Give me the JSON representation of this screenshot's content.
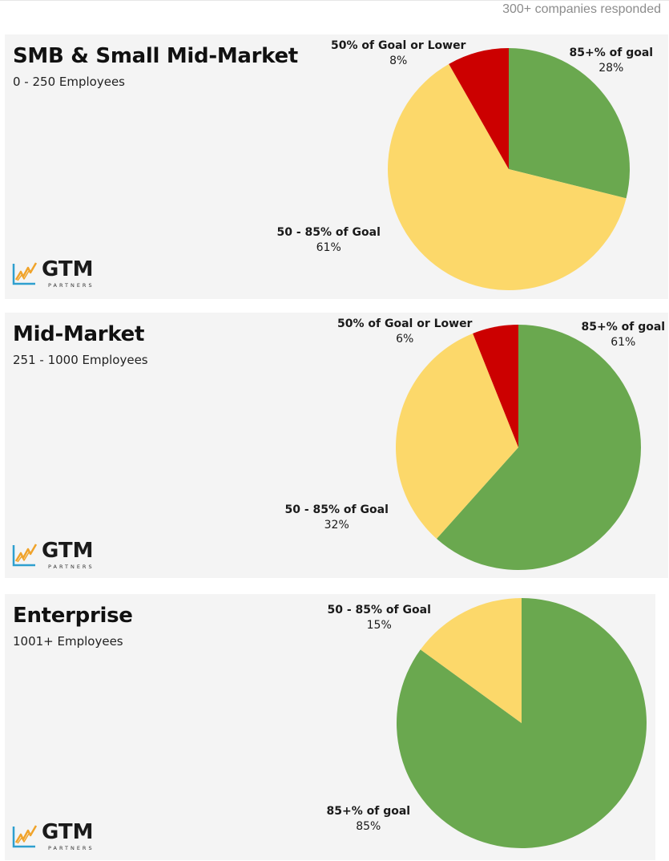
{
  "header": {
    "responded": "300+ companies responded"
  },
  "logo": {
    "text": "GTM",
    "sub": "PARTNERS"
  },
  "chart_data": [
    {
      "type": "pie",
      "title": "SMB & Small Mid-Market",
      "subtitle": "0 - 250 Employees",
      "slices": [
        {
          "label": "85+% of goal",
          "value": 28,
          "value_label": "28%",
          "color": "#6aa84f"
        },
        {
          "label": "50 - 85% of Goal",
          "value": 61,
          "value_label": "61%",
          "color": "#fcd86a"
        },
        {
          "label": "50% of Goal or Lower",
          "value": 8,
          "value_label": "8%",
          "color": "#cc0000"
        }
      ]
    },
    {
      "type": "pie",
      "title": "Mid-Market",
      "subtitle": "251 - 1000 Employees",
      "slices": [
        {
          "label": "85+% of goal",
          "value": 61,
          "value_label": "61%",
          "color": "#6aa84f"
        },
        {
          "label": "50 - 85% of Goal",
          "value": 32,
          "value_label": "32%",
          "color": "#fcd86a"
        },
        {
          "label": "50% of Goal or Lower",
          "value": 6,
          "value_label": "6%",
          "color": "#cc0000"
        }
      ]
    },
    {
      "type": "pie",
      "title": "Enterprise",
      "subtitle": "1001+ Employees",
      "slices": [
        {
          "label": "85+% of goal",
          "value": 85,
          "value_label": "85%",
          "color": "#6aa84f"
        },
        {
          "label": "50 - 85% of Goal",
          "value": 15,
          "value_label": "15%",
          "color": "#fcd86a"
        }
      ]
    }
  ]
}
